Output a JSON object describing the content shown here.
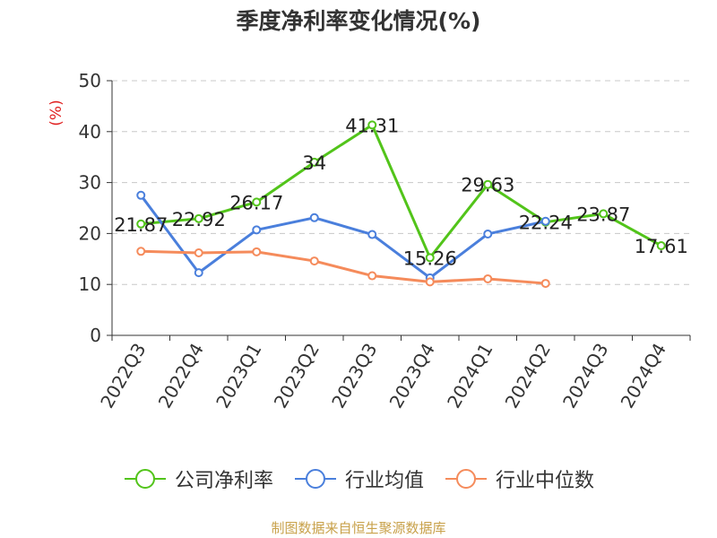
{
  "chart_data": {
    "type": "line",
    "title": "季度净利率变化情况(%)",
    "ylabel": "(%)",
    "xlabel": "",
    "categories": [
      "2022Q3",
      "2022Q4",
      "2023Q1",
      "2023Q2",
      "2023Q3",
      "2023Q4",
      "2024Q1",
      "2024Q2",
      "2024Q3",
      "2024Q4"
    ],
    "ylim": [
      0,
      50
    ],
    "yticks": [
      0,
      10,
      20,
      30,
      40,
      50
    ],
    "grid": true,
    "legend_position": "bottom",
    "series": [
      {
        "name": "公司净利率",
        "color": "#52c41a",
        "show_labels": true,
        "values": [
          21.87,
          22.92,
          26.17,
          34,
          41.31,
          15.26,
          29.63,
          22.24,
          23.87,
          17.61
        ]
      },
      {
        "name": "行业均值",
        "color": "#4a7fdc",
        "show_labels": false,
        "values": [
          27.5,
          12.3,
          20.7,
          23.1,
          19.8,
          11.3,
          19.9,
          22.4,
          null,
          null
        ]
      },
      {
        "name": "行业中位数",
        "color": "#f58b5b",
        "show_labels": false,
        "values": [
          16.5,
          16.2,
          16.4,
          14.6,
          11.7,
          10.5,
          11.1,
          10.2,
          null,
          null
        ]
      }
    ]
  },
  "source": "制图数据来自恒生聚源数据库"
}
